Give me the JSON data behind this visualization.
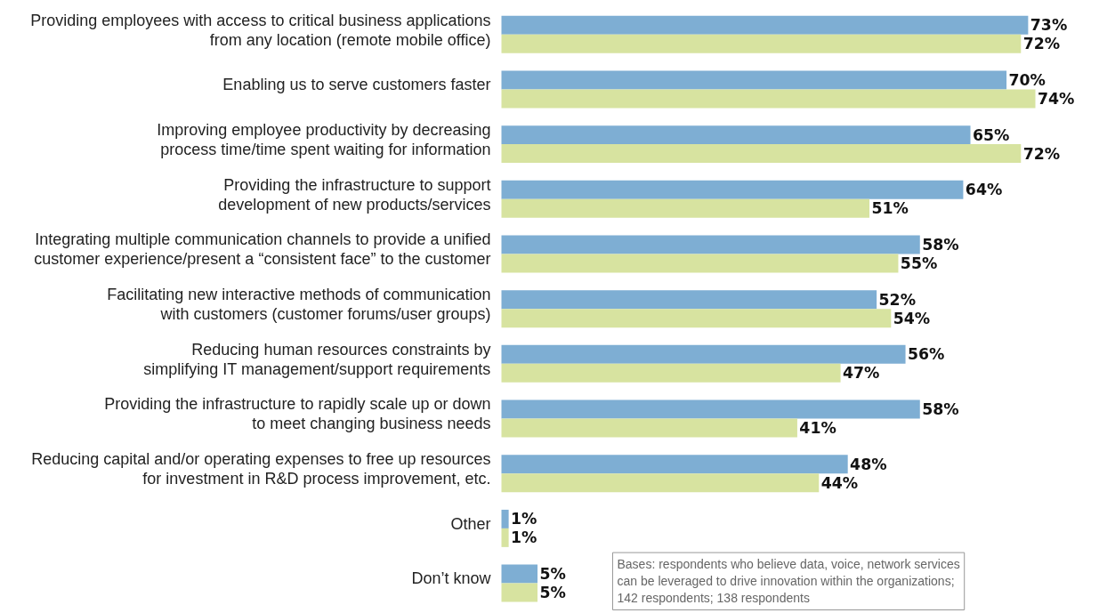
{
  "chart_data": {
    "type": "bar",
    "orientation": "horizontal",
    "categories": [
      "Providing employees with access to critical business applications\nfrom any location (remote mobile office)",
      "Enabling us to serve customers faster",
      "Improving employee productivity by decreasing\nprocess time/time spent waiting for information",
      "Providing the infrastructure to support\ndevelopment of new products/services",
      "Integrating multiple communication channels to provide a unified\ncustomer experience/present a “consistent face” to the customer",
      "Facilitating new interactive methods of communication\nwith customers (customer forums/user groups)",
      "Reducing human resources constraints by\nsimplifying IT management/support requirements",
      "Providing the infrastructure to rapidly scale up or down\nto meet changing business needs",
      "Reducing capital and/or operating expenses to free up resources\nfor investment in R&D process improvement, etc.",
      "Other",
      "Don’t know"
    ],
    "series": [
      {
        "color": "#7eaed3",
        "values": [
          73,
          70,
          65,
          64,
          58,
          52,
          56,
          58,
          48,
          1,
          5
        ],
        "value_labels": [
          "73%",
          "70%",
          "65%",
          "64%",
          "58%",
          "52%",
          "56%",
          "58%",
          "48%",
          "1%",
          "5%"
        ]
      },
      {
        "color": "#d7e3a0",
        "values": [
          72,
          74,
          72,
          51,
          55,
          54,
          47,
          41,
          44,
          1,
          5
        ],
        "value_labels": [
          "72%",
          "74%",
          "72%",
          "51%",
          "55%",
          "54%",
          "47%",
          "41%",
          "44%",
          "1%",
          "5%"
        ]
      }
    ],
    "annotations": [
      "Bases: respondents who believe data, voice, network services can be leveraged to drive innovation within the organizations; 142 respondents; 138 respondents"
    ]
  }
}
